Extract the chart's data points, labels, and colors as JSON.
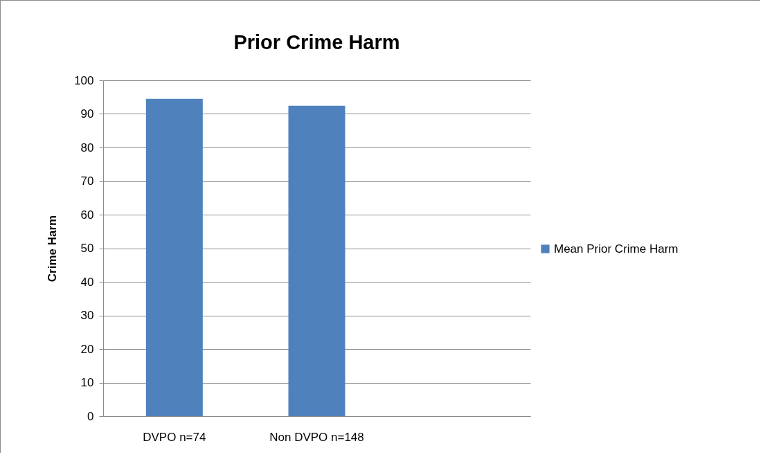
{
  "chart_data": {
    "type": "bar",
    "title": "Prior Crime Harm",
    "ylabel": "Crime Harm",
    "categories": [
      "DVPO n=74",
      "Non DVPO n=148",
      null
    ],
    "series": [
      {
        "name": "Mean Prior Crime Harm",
        "color": "#4f81bd",
        "values": [
          94.5,
          92.4,
          null
        ]
      }
    ],
    "ylim": [
      0,
      100
    ],
    "yticks": [
      0,
      10,
      20,
      30,
      40,
      50,
      60,
      70,
      80,
      90,
      100
    ],
    "grid": "y",
    "legend": "right"
  }
}
